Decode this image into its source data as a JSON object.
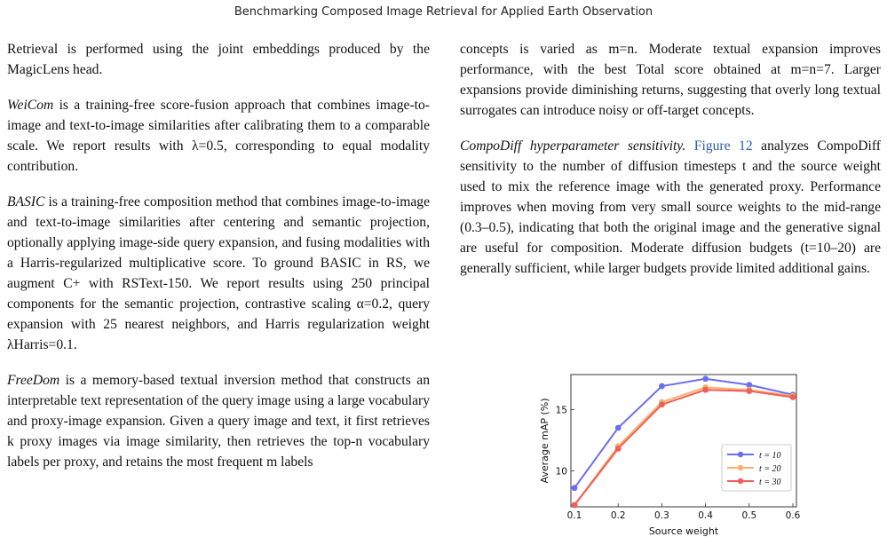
{
  "header": {
    "running_title": "Benchmarking Composed Image Retrieval for Applied Earth Observation"
  },
  "left_column": {
    "p1": "Retrieval is performed using the joint embeddings produced by the MagicLens head.",
    "weicom_term": "WeiCom",
    "weicom_text": " is a training-free score-fusion approach that combines image-to-image and text-to-image similarities after calibrating them to a comparable scale. We report results with λ=0.5, corresponding to equal modality contribution.",
    "basic_term": "BASIC",
    "basic_text": " is a training-free composition method that combines image-to-image and text-to-image similarities after centering and semantic projection, optionally applying image-side query expansion, and fusing modalities with a Harris-regularized multiplicative score. To ground BASIC in RS, we augment C+ with RSText-150. We report results using 250 principal components for the semantic projection, contrastive scaling α=0.2, query expansion with 25 nearest neighbors, and Harris regularization weight λHarris=0.1.",
    "freedom_term": "FreeDom",
    "freedom_text": " is a memory-based textual inversion method that constructs an interpretable text representation of the query image using a large vocabulary and proxy-image expansion. Given a query image and text, it first retrieves k proxy images via image similarity, then retrieves the top-n vocabulary labels per proxy, and retains the most frequent m labels"
  },
  "right_column": {
    "p1": "concepts is varied as m=n. Moderate textual expansion improves performance, with the best Total score obtained at m=n=7. Larger expansions provide diminishing returns, suggesting that overly long textual surrogates can introduce noisy or off-target concepts.",
    "p2_heading": "CompoDiff hyperparameter sensitivity.",
    "p2_link": "Figure 12",
    "p2_text": " analyzes CompoDiff sensitivity to the number of diffusion timesteps t and the source weight used to mix the reference image with the generated proxy. Performance improves when moving from very small source weights to the mid-range (0.3–0.5), indicating that both the original image and the generative signal are useful for composition. Moderate diffusion budgets (t=10–20) are generally sufficient, while larger budgets provide limited additional gains."
  },
  "chart_data": {
    "type": "line",
    "xlabel": "Source weight",
    "ylabel": "Average mAP (%)",
    "x": [
      0.1,
      0.2,
      0.3,
      0.4,
      0.5,
      0.6
    ],
    "xlim": [
      0.1,
      0.6
    ],
    "ylim": [
      7.2,
      17.7
    ],
    "xticks": [
      0.1,
      0.2,
      0.3,
      0.4,
      0.5,
      0.6
    ],
    "yticks": [
      10,
      15
    ],
    "legend_position": "lower-right",
    "grid": false,
    "series": [
      {
        "name": "t = 10",
        "color": "#6b6ef0",
        "values": [
          8.6,
          13.5,
          16.9,
          17.5,
          17.0,
          16.2
        ]
      },
      {
        "name": "t = 20",
        "color": "#f6b26b",
        "values": [
          7.2,
          12.0,
          15.6,
          16.8,
          16.6,
          16.1
        ]
      },
      {
        "name": "t = 30",
        "color": "#ee5f5b",
        "values": [
          7.2,
          11.8,
          15.4,
          16.6,
          16.5,
          16.0
        ]
      }
    ]
  }
}
